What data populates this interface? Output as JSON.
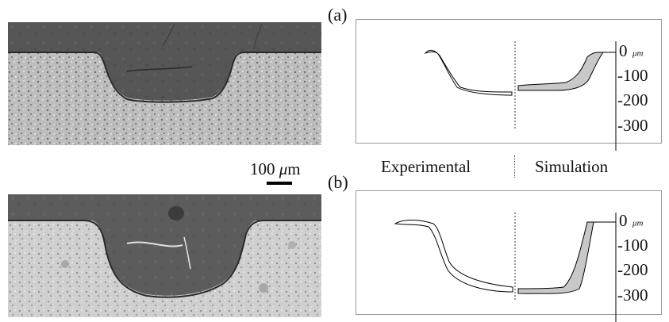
{
  "panels": {
    "a": {
      "label": "(a)"
    },
    "b": {
      "label": "(b)"
    }
  },
  "scale_bar": {
    "value": "100",
    "unit_symbol": "μ",
    "unit_suffix": "m"
  },
  "captions": {
    "left": "Experimental",
    "right": "Simulation"
  },
  "depth_axis": {
    "unit": "μm",
    "a_ticks": [
      "0",
      "-100",
      "-200",
      "-300"
    ],
    "b_ticks": [
      "0",
      "-100",
      "-200",
      "-300"
    ]
  },
  "colors": {
    "micro_dark": "#5a5a5a",
    "micro_light": "#d8d8d8",
    "profile_fill": "#c8c8c8",
    "outline": "#000000"
  }
}
